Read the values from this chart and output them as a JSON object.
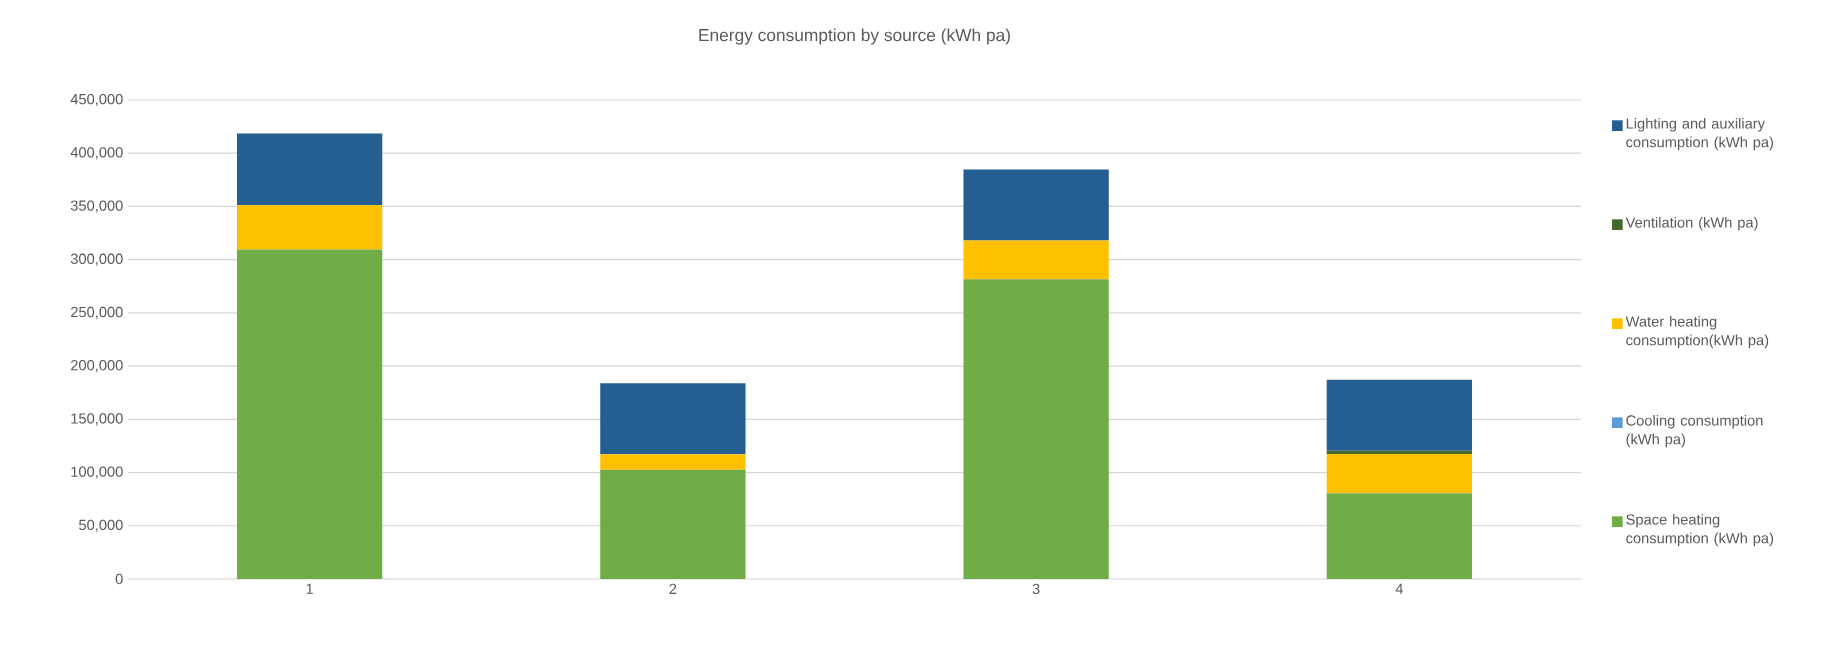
{
  "chart_data": {
    "type": "bar",
    "title": "Energy consumption by source (kWh pa)",
    "stacked": true,
    "categories": [
      "1",
      "2",
      "3",
      "4"
    ],
    "series": [
      {
        "name": "Space heating consumption (kWh pa)",
        "color": "#70ad47",
        "values": [
          309500,
          102700,
          281500,
          80600
        ]
      },
      {
        "name": "Cooling consumption (kWh pa)",
        "color": "#5b9bd5",
        "values": [
          0,
          0,
          0,
          0
        ]
      },
      {
        "name": "Water heating consumption(kWh pa)",
        "color": "#ffc000",
        "values": [
          41700,
          14400,
          36500,
          36800
        ]
      },
      {
        "name": "Ventilation (kWh pa)",
        "color": "#43682b",
        "values": [
          0,
          0,
          0,
          3000
        ]
      },
      {
        "name": "Lighting and auxiliary consumption (kWh pa)",
        "color": "#255e91",
        "values": [
          67400,
          66700,
          66800,
          66700
        ]
      }
    ],
    "ylim": [
      0,
      450000
    ],
    "yticks": [
      {
        "value": 0,
        "label": "0"
      },
      {
        "value": 50000,
        "label": "50,000"
      },
      {
        "value": 100000,
        "label": "100,000"
      },
      {
        "value": 150000,
        "label": "150,000"
      },
      {
        "value": 200000,
        "label": "200,000"
      },
      {
        "value": 250000,
        "label": "250,000"
      },
      {
        "value": 300000,
        "label": "300,000"
      },
      {
        "value": 350000,
        "label": "350,000"
      },
      {
        "value": 400000,
        "label": "400,000"
      },
      {
        "value": 450000,
        "label": "450,000"
      }
    ],
    "grid": "y",
    "legend": "right"
  }
}
